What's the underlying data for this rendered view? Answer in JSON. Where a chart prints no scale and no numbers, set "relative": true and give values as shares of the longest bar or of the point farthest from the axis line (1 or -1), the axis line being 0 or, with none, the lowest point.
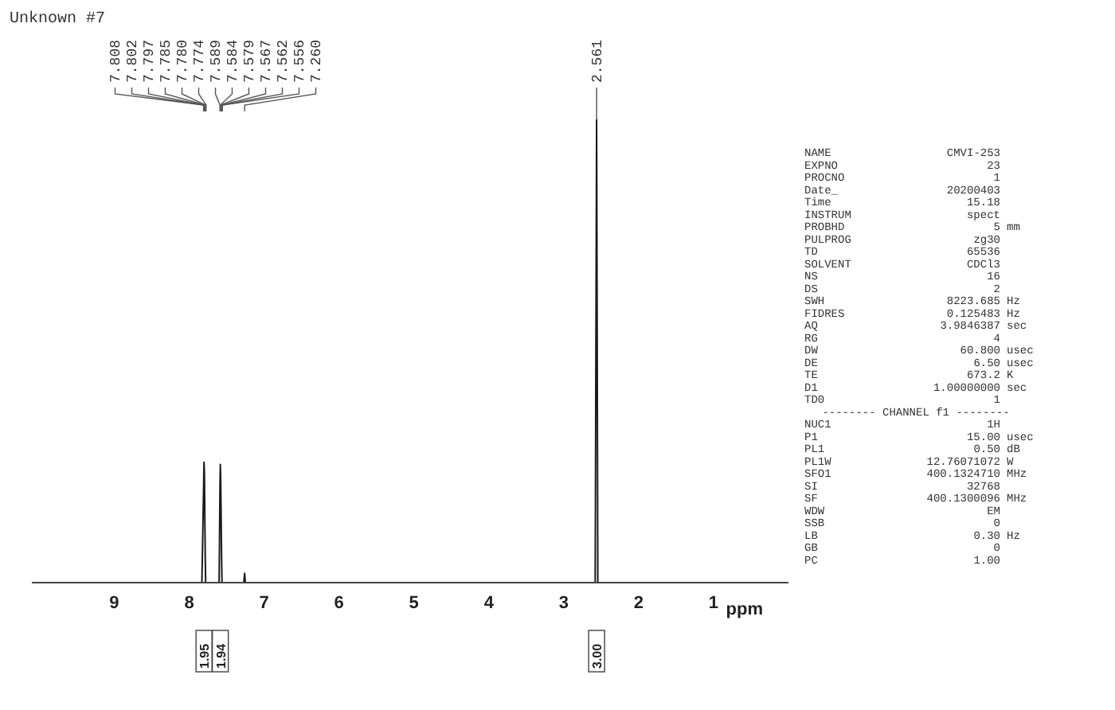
{
  "chart_data": {
    "type": "line",
    "title": "Unknown #7",
    "xlabel": "ppm",
    "relative": true,
    "marker": "none",
    "x": [
      10.1,
      7.83,
      7.808,
      7.802,
      7.797,
      7.785,
      7.78,
      7.774,
      7.6,
      7.589,
      7.584,
      7.579,
      7.567,
      7.562,
      7.556,
      7.27,
      7.26,
      7.25,
      2.58,
      2.561,
      2.545,
      0.0
    ],
    "series": [
      {
        "color": "#1a1a1a",
        "values": [
          0,
          0,
          0.2,
          0.26,
          0.24,
          0.05,
          0,
          0,
          0,
          0.2,
          0.255,
          0.22,
          0.05,
          0,
          0,
          0,
          0.02,
          0,
          0,
          1,
          0,
          0
        ]
      }
    ],
    "xlim": [
      10.1,
      0.0
    ],
    "xticks": [
      9,
      8,
      7,
      6,
      5,
      4,
      3,
      2,
      1
    ],
    "annotations": [
      {
        "text": "7.808",
        "x": 7.808
      },
      {
        "text": "7.802",
        "x": 7.802
      },
      {
        "text": "7.797",
        "x": 7.797
      },
      {
        "text": "7.785",
        "x": 7.785
      },
      {
        "text": "7.780",
        "x": 7.78
      },
      {
        "text": "7.774",
        "x": 7.774
      },
      {
        "text": "7.589",
        "x": 7.589
      },
      {
        "text": "7.584",
        "x": 7.584
      },
      {
        "text": "7.579",
        "x": 7.579
      },
      {
        "text": "7.567",
        "x": 7.567
      },
      {
        "text": "7.562",
        "x": 7.562
      },
      {
        "text": "7.556",
        "x": 7.556
      },
      {
        "text": "7.260",
        "x": 7.26
      },
      {
        "text": "2.561",
        "x": 2.561,
        "y": 1
      },
      "1.95",
      "1.94",
      "3.00",
      "NAME CMVI-253",
      "EXPNO 23",
      "PROCNO 1",
      "Date_ 20200403",
      "Time 15.18",
      "INSTRUM spect",
      "PROBHD 5 mm",
      "PULPROG zg30",
      "TD 65536",
      "SOLVENT CDCl3",
      "NS 16",
      "DS 2",
      "SWH 8223.685 Hz",
      "FIDRES 0.125483 Hz",
      "AQ 3.9846387 sec",
      "RG 4",
      "DW 60.800 usec",
      "DE 6.50 usec",
      "TE 673.2 K",
      "D1 1.00000000 sec",
      "TD0 1",
      "-------- CHANNEL f1 --------",
      "NUC1 1H",
      "P1 15.00 usec",
      "PL1 0.50 dB",
      "PL1W 12.76071072 W",
      "SFO1 400.1324710 MHz",
      "SI 32768",
      "SF 400.1300096 MHz",
      "WDW EM",
      "SSB 0",
      "LB 0.30 Hz",
      "GB 0",
      "PC 1.00"
    ]
  }
}
